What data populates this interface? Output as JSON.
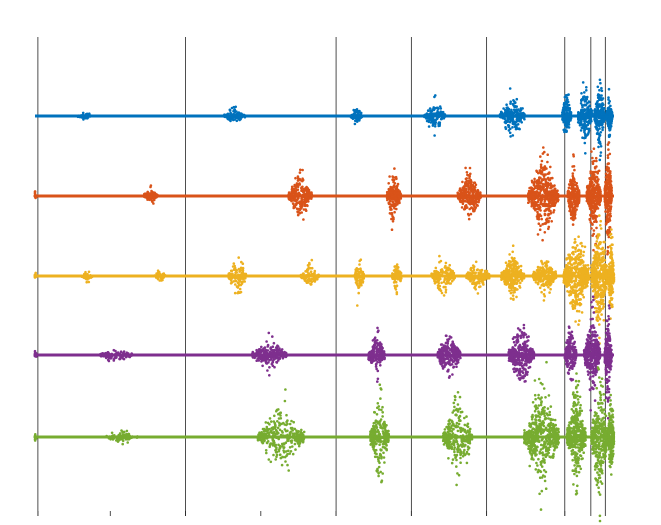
{
  "chart_data": {
    "type": "scatter",
    "title": "",
    "xlabel": "",
    "ylabel": "",
    "xlim": [
      0,
      1
    ],
    "ylim": [
      0,
      5
    ],
    "grid": false,
    "legend": "none",
    "vertical_lines": [
      0.005,
      0.26,
      0.52,
      0.65,
      0.78,
      0.915,
      0.96,
      0.985
    ],
    "series": [
      {
        "level": 4,
        "color": "#0072BD",
        "bursts": [
          {
            "x": 0.085,
            "amp": 0.07,
            "count": 40,
            "width": 0.012
          },
          {
            "x": 0.345,
            "amp": 0.12,
            "count": 110,
            "width": 0.018
          },
          {
            "x": 0.555,
            "amp": 0.16,
            "count": 80,
            "width": 0.01
          },
          {
            "x": 0.69,
            "amp": 0.22,
            "count": 140,
            "width": 0.018
          },
          {
            "x": 0.825,
            "amp": 0.28,
            "count": 220,
            "width": 0.022
          },
          {
            "x": 0.918,
            "amp": 0.35,
            "count": 160,
            "width": 0.008
          },
          {
            "x": 0.95,
            "amp": 0.45,
            "count": 220,
            "width": 0.012
          },
          {
            "x": 0.975,
            "amp": 0.55,
            "count": 220,
            "width": 0.009
          },
          {
            "x": 0.992,
            "amp": 0.4,
            "count": 120,
            "width": 0.005
          }
        ]
      },
      {
        "level": 3,
        "color": "#D95319",
        "bursts": [
          {
            "x": 0.0,
            "amp": 0.06,
            "count": 20,
            "width": 0.003
          },
          {
            "x": 0.2,
            "amp": 0.12,
            "count": 110,
            "width": 0.012
          },
          {
            "x": 0.458,
            "amp": 0.32,
            "count": 260,
            "width": 0.02
          },
          {
            "x": 0.62,
            "amp": 0.38,
            "count": 230,
            "width": 0.012
          },
          {
            "x": 0.75,
            "amp": 0.35,
            "count": 300,
            "width": 0.02
          },
          {
            "x": 0.878,
            "amp": 0.55,
            "count": 500,
            "width": 0.026
          },
          {
            "x": 0.93,
            "amp": 0.45,
            "count": 260,
            "width": 0.01
          },
          {
            "x": 0.965,
            "amp": 0.65,
            "count": 380,
            "width": 0.012
          },
          {
            "x": 0.99,
            "amp": 0.8,
            "count": 300,
            "width": 0.006
          }
        ]
      },
      {
        "level": 2,
        "color": "#EDB120",
        "bursts": [
          {
            "x": 0.0,
            "amp": 0.06,
            "count": 20,
            "width": 0.003
          },
          {
            "x": 0.09,
            "amp": 0.09,
            "count": 40,
            "width": 0.01
          },
          {
            "x": 0.215,
            "amp": 0.1,
            "count": 50,
            "width": 0.01
          },
          {
            "x": 0.35,
            "amp": 0.25,
            "count": 130,
            "width": 0.016
          },
          {
            "x": 0.475,
            "amp": 0.2,
            "count": 110,
            "width": 0.016
          },
          {
            "x": 0.56,
            "amp": 0.28,
            "count": 90,
            "width": 0.008
          },
          {
            "x": 0.625,
            "amp": 0.25,
            "count": 90,
            "width": 0.008
          },
          {
            "x": 0.705,
            "amp": 0.28,
            "count": 180,
            "width": 0.02
          },
          {
            "x": 0.765,
            "amp": 0.24,
            "count": 160,
            "width": 0.02
          },
          {
            "x": 0.825,
            "amp": 0.32,
            "count": 260,
            "width": 0.02
          },
          {
            "x": 0.88,
            "amp": 0.3,
            "count": 260,
            "width": 0.02
          },
          {
            "x": 0.935,
            "amp": 0.6,
            "count": 500,
            "width": 0.022
          },
          {
            "x": 0.975,
            "amp": 0.8,
            "count": 450,
            "width": 0.014
          },
          {
            "x": 0.995,
            "amp": 0.7,
            "count": 200,
            "width": 0.005
          }
        ]
      },
      {
        "level": 1,
        "color": "#7E2F8E",
        "bursts": [
          {
            "x": 0.0,
            "amp": 0.06,
            "count": 20,
            "width": 0.003
          },
          {
            "x": 0.14,
            "amp": 0.1,
            "count": 110,
            "width": 0.03
          },
          {
            "x": 0.405,
            "amp": 0.2,
            "count": 260,
            "width": 0.03
          },
          {
            "x": 0.59,
            "amp": 0.3,
            "count": 200,
            "width": 0.014
          },
          {
            "x": 0.715,
            "amp": 0.35,
            "count": 260,
            "width": 0.02
          },
          {
            "x": 0.84,
            "amp": 0.45,
            "count": 360,
            "width": 0.022
          },
          {
            "x": 0.925,
            "amp": 0.45,
            "count": 200,
            "width": 0.01
          },
          {
            "x": 0.962,
            "amp": 0.6,
            "count": 380,
            "width": 0.014
          },
          {
            "x": 0.99,
            "amp": 0.7,
            "count": 220,
            "width": 0.006
          }
        ]
      },
      {
        "level": 0,
        "color": "#77AC30",
        "bursts": [
          {
            "x": 0.0,
            "amp": 0.06,
            "count": 20,
            "width": 0.003
          },
          {
            "x": 0.15,
            "amp": 0.1,
            "count": 100,
            "width": 0.028
          },
          {
            "x": 0.425,
            "amp": 0.45,
            "count": 330,
            "width": 0.04
          },
          {
            "x": 0.595,
            "amp": 0.65,
            "count": 240,
            "width": 0.016
          },
          {
            "x": 0.73,
            "amp": 0.6,
            "count": 300,
            "width": 0.025
          },
          {
            "x": 0.875,
            "amp": 0.75,
            "count": 520,
            "width": 0.03
          },
          {
            "x": 0.935,
            "amp": 0.7,
            "count": 460,
            "width": 0.016
          },
          {
            "x": 0.975,
            "amp": 0.9,
            "count": 400,
            "width": 0.014
          },
          {
            "x": 0.995,
            "amp": 0.7,
            "count": 200,
            "width": 0.005
          }
        ]
      }
    ]
  }
}
